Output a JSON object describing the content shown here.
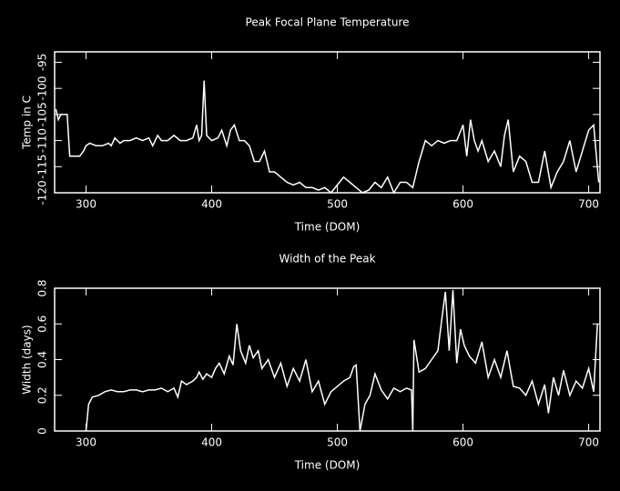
{
  "chart_data": [
    {
      "type": "line",
      "title": "Peak Focal Plane Temperature",
      "xlabel": "Time (DOM)",
      "ylabel": "Temp in C",
      "color": "#ffffff",
      "xlim": [
        275,
        709
      ],
      "xticks": [
        300,
        400,
        500,
        600,
        700
      ],
      "ylim": [
        -120,
        -93
      ],
      "yticks": [
        -120,
        -115,
        -110,
        -105,
        -100,
        -95
      ],
      "x": [
        276,
        278,
        280,
        285,
        287,
        290,
        295,
        298,
        300,
        303,
        308,
        313,
        318,
        320,
        323,
        327,
        330,
        335,
        340,
        345,
        350,
        353,
        357,
        360,
        365,
        370,
        375,
        380,
        385,
        388,
        390,
        392,
        394,
        396,
        400,
        405,
        408,
        412,
        415,
        418,
        422,
        426,
        430,
        434,
        438,
        442,
        446,
        450,
        455,
        460,
        465,
        470,
        475,
        480,
        485,
        490,
        495,
        500,
        505,
        510,
        515,
        520,
        525,
        530,
        535,
        540,
        545,
        550,
        555,
        560,
        565,
        570,
        575,
        580,
        585,
        590,
        595,
        600,
        603,
        606,
        609,
        612,
        615,
        620,
        625,
        630,
        633,
        636,
        640,
        645,
        650,
        655,
        660,
        665,
        670,
        675,
        680,
        685,
        690,
        695,
        700,
        704,
        708
      ],
      "values": [
        -104,
        -106,
        -105,
        -105,
        -113,
        -113,
        -113,
        -112,
        -111,
        -110.5,
        -111,
        -111,
        -110.5,
        -111,
        -109.5,
        -110.5,
        -110,
        -110,
        -109.5,
        -110,
        -109.5,
        -111,
        -109,
        -110,
        -110,
        -109,
        -110,
        -110,
        -109.5,
        -107,
        -110,
        -109,
        -98.5,
        -109,
        -110,
        -109.5,
        -108,
        -111,
        -108,
        -107,
        -110,
        -110,
        -111,
        -114,
        -114,
        -112,
        -116,
        -116,
        -117,
        -118,
        -118.5,
        -118,
        -119,
        -119,
        -119.5,
        -119,
        -120,
        -118.5,
        -117,
        -118,
        -119,
        -120,
        -119.5,
        -118,
        -119,
        -117,
        -120,
        -118,
        -118,
        -119,
        -114,
        -110,
        -111,
        -110,
        -110.5,
        -110,
        -110,
        -107,
        -113,
        -106,
        -110,
        -112,
        -110,
        -114,
        -112,
        -115,
        -109,
        -106,
        -116,
        -113,
        -114,
        -118,
        -118,
        -112,
        -119,
        -116,
        -114,
        -110,
        -116,
        -112,
        -108,
        -107,
        -118
      ]
    },
    {
      "type": "line",
      "title": "Width of the Peak",
      "xlabel": "Time (DOM)",
      "ylabel": "Width (days)",
      "color": "#ffffff",
      "xlim": [
        275,
        709
      ],
      "xticks": [
        300,
        400,
        500,
        600,
        700
      ],
      "ylim": [
        0,
        0.8
      ],
      "yticks": [
        0,
        0.2,
        0.4,
        0.6,
        0.8
      ],
      "x": [
        300,
        302,
        305,
        310,
        315,
        320,
        325,
        330,
        335,
        340,
        345,
        350,
        355,
        360,
        365,
        370,
        373,
        376,
        380,
        385,
        388,
        390,
        393,
        396,
        400,
        403,
        406,
        410,
        414,
        417,
        420,
        423,
        427,
        430,
        433,
        437,
        440,
        445,
        450,
        455,
        460,
        465,
        470,
        475,
        480,
        485,
        490,
        495,
        500,
        505,
        510,
        513,
        515,
        518,
        522,
        526,
        530,
        535,
        540,
        545,
        550,
        555,
        559,
        560,
        561,
        565,
        570,
        575,
        580,
        583,
        586,
        589,
        592,
        595,
        598,
        601,
        605,
        610,
        615,
        620,
        625,
        630,
        635,
        640,
        645,
        650,
        655,
        660,
        665,
        668,
        672,
        676,
        680,
        685,
        690,
        695,
        700,
        704,
        707
      ],
      "values": [
        0,
        0.15,
        0.19,
        0.2,
        0.22,
        0.23,
        0.22,
        0.22,
        0.23,
        0.23,
        0.22,
        0.23,
        0.23,
        0.24,
        0.22,
        0.24,
        0.19,
        0.28,
        0.26,
        0.28,
        0.3,
        0.33,
        0.29,
        0.32,
        0.3,
        0.35,
        0.38,
        0.32,
        0.42,
        0.37,
        0.6,
        0.45,
        0.38,
        0.48,
        0.41,
        0.45,
        0.35,
        0.4,
        0.3,
        0.38,
        0.25,
        0.35,
        0.28,
        0.4,
        0.22,
        0.28,
        0.15,
        0.22,
        0.25,
        0.28,
        0.3,
        0.36,
        0.37,
        0,
        0.15,
        0.2,
        0.32,
        0.23,
        0.18,
        0.24,
        0.22,
        0.24,
        0.23,
        0,
        0.51,
        0.33,
        0.35,
        0.4,
        0.45,
        0.62,
        0.78,
        0.45,
        0.79,
        0.38,
        0.57,
        0.48,
        0.42,
        0.38,
        0.5,
        0.3,
        0.4,
        0.3,
        0.45,
        0.25,
        0.24,
        0.2,
        0.28,
        0.15,
        0.26,
        0.1,
        0.3,
        0.2,
        0.34,
        0.2,
        0.28,
        0.24,
        0.35,
        0.22,
        0.6
      ]
    }
  ]
}
